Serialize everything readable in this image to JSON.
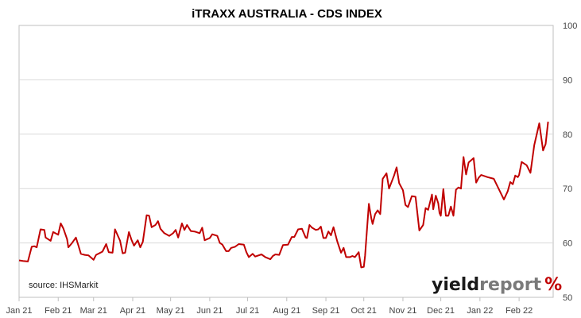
{
  "chart_data": {
    "type": "line",
    "title": "iTRAXX AUSTRALIA - CDS INDEX",
    "source": "source: IHSMarkit",
    "xlabel": "",
    "ylabel": "",
    "x_tick_labels": [
      "Jan 21",
      "Feb 21",
      "Mar 21",
      "Apr 21",
      "May 21",
      "Jun 21",
      "Jul 21",
      "Aug 21",
      "Sep 21",
      "Oct 21",
      "Nov 21",
      "Dec 21",
      "Jan 22",
      "Feb 22"
    ],
    "x_range": [
      "2021-01-01",
      "2022-02-28"
    ],
    "y_axis_side": "right",
    "ylim": [
      50,
      100
    ],
    "y_ticks": [
      50,
      60,
      70,
      80,
      90,
      100
    ],
    "grid": true,
    "series": [
      {
        "color": "#c00000",
        "points": [
          [
            "2021-01-01",
            56.8
          ],
          [
            "2021-01-04",
            56.7
          ],
          [
            "2021-01-08",
            56.6
          ],
          [
            "2021-01-11",
            59.3
          ],
          [
            "2021-01-13",
            59.4
          ],
          [
            "2021-01-15",
            59.2
          ],
          [
            "2021-01-18",
            62.5
          ],
          [
            "2021-01-21",
            62.4
          ],
          [
            "2021-01-22",
            61.0
          ],
          [
            "2021-01-26",
            60.4
          ],
          [
            "2021-01-28",
            62.0
          ],
          [
            "2021-02-01",
            61.5
          ],
          [
            "2021-02-03",
            63.6
          ],
          [
            "2021-02-05",
            62.7
          ],
          [
            "2021-02-08",
            60.7
          ],
          [
            "2021-02-09",
            59.2
          ],
          [
            "2021-02-12",
            60.0
          ],
          [
            "2021-02-15",
            61.0
          ],
          [
            "2021-02-17",
            59.5
          ],
          [
            "2021-02-19",
            58.0
          ],
          [
            "2021-02-22",
            57.8
          ],
          [
            "2021-02-25",
            57.7
          ],
          [
            "2021-03-01",
            56.9
          ],
          [
            "2021-03-03",
            57.8
          ],
          [
            "2021-03-08",
            58.4
          ],
          [
            "2021-03-11",
            59.8
          ],
          [
            "2021-03-13",
            58.3
          ],
          [
            "2021-03-16",
            58.2
          ],
          [
            "2021-03-18",
            62.5
          ],
          [
            "2021-03-22",
            60.4
          ],
          [
            "2021-03-24",
            58.1
          ],
          [
            "2021-03-26",
            58.2
          ],
          [
            "2021-03-29",
            62.0
          ],
          [
            "2021-03-31",
            60.6
          ],
          [
            "2021-04-02",
            59.5
          ],
          [
            "2021-04-05",
            60.5
          ],
          [
            "2021-04-07",
            59.2
          ],
          [
            "2021-04-09",
            60.2
          ],
          [
            "2021-04-12",
            65.1
          ],
          [
            "2021-04-14",
            65.0
          ],
          [
            "2021-04-16",
            62.9
          ],
          [
            "2021-04-19",
            63.3
          ],
          [
            "2021-04-21",
            64.0
          ],
          [
            "2021-04-23",
            62.6
          ],
          [
            "2021-04-26",
            61.8
          ],
          [
            "2021-04-30",
            61.3
          ],
          [
            "2021-05-03",
            61.8
          ],
          [
            "2021-05-05",
            62.4
          ],
          [
            "2021-05-07",
            61.0
          ],
          [
            "2021-05-10",
            63.6
          ],
          [
            "2021-05-12",
            62.4
          ],
          [
            "2021-05-14",
            63.3
          ],
          [
            "2021-05-17",
            62.2
          ],
          [
            "2021-05-20",
            62.1
          ],
          [
            "2021-05-24",
            61.8
          ],
          [
            "2021-05-26",
            62.8
          ],
          [
            "2021-05-28",
            60.5
          ],
          [
            "2021-06-01",
            60.9
          ],
          [
            "2021-06-03",
            61.6
          ],
          [
            "2021-06-07",
            61.3
          ],
          [
            "2021-06-09",
            60.0
          ],
          [
            "2021-06-11",
            59.7
          ],
          [
            "2021-06-14",
            58.5
          ],
          [
            "2021-06-16",
            58.5
          ],
          [
            "2021-06-18",
            59.1
          ],
          [
            "2021-06-21",
            59.3
          ],
          [
            "2021-06-24",
            59.8
          ],
          [
            "2021-06-28",
            59.7
          ],
          [
            "2021-06-30",
            58.3
          ],
          [
            "2021-07-02",
            57.4
          ],
          [
            "2021-07-05",
            58.0
          ],
          [
            "2021-07-07",
            57.5
          ],
          [
            "2021-07-12",
            57.9
          ],
          [
            "2021-07-15",
            57.4
          ],
          [
            "2021-07-19",
            57.0
          ],
          [
            "2021-07-21",
            57.6
          ],
          [
            "2021-07-23",
            57.9
          ],
          [
            "2021-07-26",
            57.8
          ],
          [
            "2021-07-29",
            59.6
          ],
          [
            "2021-08-02",
            59.7
          ],
          [
            "2021-08-05",
            61.1
          ],
          [
            "2021-08-07",
            61.1
          ],
          [
            "2021-08-10",
            62.5
          ],
          [
            "2021-08-13",
            62.6
          ],
          [
            "2021-08-16",
            61.0
          ],
          [
            "2021-08-17",
            60.9
          ],
          [
            "2021-08-19",
            63.3
          ],
          [
            "2021-08-21",
            62.8
          ],
          [
            "2021-08-24",
            62.4
          ],
          [
            "2021-08-26",
            62.5
          ],
          [
            "2021-08-28",
            63.0
          ],
          [
            "2021-08-30",
            60.9
          ],
          [
            "2021-09-01",
            60.9
          ],
          [
            "2021-09-03",
            62.1
          ],
          [
            "2021-09-05",
            61.4
          ],
          [
            "2021-09-07",
            62.9
          ],
          [
            "2021-09-10",
            60.3
          ],
          [
            "2021-09-13",
            58.2
          ],
          [
            "2021-09-15",
            59.1
          ],
          [
            "2021-09-17",
            57.4
          ],
          [
            "2021-09-20",
            57.4
          ],
          [
            "2021-09-22",
            57.6
          ],
          [
            "2021-09-24",
            57.4
          ],
          [
            "2021-09-27",
            58.3
          ],
          [
            "2021-09-29",
            55.5
          ],
          [
            "2021-10-01",
            55.6
          ],
          [
            "2021-10-02",
            57.6
          ],
          [
            "2021-10-05",
            67.2
          ],
          [
            "2021-10-07",
            64.5
          ],
          [
            "2021-10-08",
            63.5
          ],
          [
            "2021-10-10",
            65.3
          ],
          [
            "2021-10-12",
            66.0
          ],
          [
            "2021-10-14",
            65.3
          ],
          [
            "2021-10-16",
            71.8
          ],
          [
            "2021-10-19",
            72.8
          ],
          [
            "2021-10-21",
            70.0
          ],
          [
            "2021-10-25",
            72.4
          ],
          [
            "2021-10-27",
            73.9
          ],
          [
            "2021-10-29",
            71.0
          ],
          [
            "2021-11-01",
            69.7
          ],
          [
            "2021-11-03",
            67.0
          ],
          [
            "2021-11-05",
            66.6
          ],
          [
            "2021-11-08",
            68.6
          ],
          [
            "2021-11-11",
            68.5
          ],
          [
            "2021-11-14",
            62.3
          ],
          [
            "2021-11-17",
            63.3
          ],
          [
            "2021-11-19",
            66.4
          ],
          [
            "2021-11-21",
            66.1
          ],
          [
            "2021-11-24",
            68.9
          ],
          [
            "2021-11-25",
            66.2
          ],
          [
            "2021-11-27",
            68.7
          ],
          [
            "2021-11-29",
            67.3
          ],
          [
            "2021-11-30",
            65.5
          ],
          [
            "2021-12-01",
            65.0
          ],
          [
            "2021-12-03",
            69.9
          ],
          [
            "2021-12-05",
            65.0
          ],
          [
            "2021-12-07",
            65.0
          ],
          [
            "2021-12-09",
            66.7
          ],
          [
            "2021-12-11",
            65.0
          ],
          [
            "2021-12-13",
            69.8
          ],
          [
            "2021-12-15",
            70.2
          ],
          [
            "2021-12-17",
            70.0
          ],
          [
            "2021-12-19",
            75.8
          ],
          [
            "2021-12-21",
            72.6
          ],
          [
            "2021-12-23",
            74.8
          ],
          [
            "2021-12-27",
            75.6
          ],
          [
            "2021-12-29",
            71.1
          ],
          [
            "2021-12-31",
            72.0
          ],
          [
            "2022-01-02",
            72.5
          ],
          [
            "2022-01-07",
            72.1
          ],
          [
            "2022-01-12",
            71.8
          ],
          [
            "2022-01-20",
            68.0
          ],
          [
            "2022-01-23",
            69.5
          ],
          [
            "2022-01-25",
            71.2
          ],
          [
            "2022-01-27",
            70.8
          ],
          [
            "2022-01-29",
            72.4
          ],
          [
            "2022-01-31",
            72.1
          ],
          [
            "2022-02-01",
            72.5
          ],
          [
            "2022-02-03",
            74.9
          ],
          [
            "2022-02-07",
            74.3
          ],
          [
            "2022-02-10",
            72.9
          ],
          [
            "2022-02-13",
            78.0
          ],
          [
            "2022-02-17",
            82.0
          ],
          [
            "2022-02-20",
            77.0
          ],
          [
            "2022-02-22",
            78.2
          ],
          [
            "2022-02-24",
            82.3
          ]
        ]
      }
    ]
  },
  "branding": {
    "part1": "yield",
    "part2": "report",
    "part3": "%",
    "colors": {
      "dark": "#1a1a1a",
      "grey": "#7a7a7a",
      "red": "#c00000",
      "green": "#4a8a2a"
    }
  },
  "colors": {
    "line": "#c00000",
    "grid": "#d9d9d9",
    "axis": "#bfbfbf"
  }
}
